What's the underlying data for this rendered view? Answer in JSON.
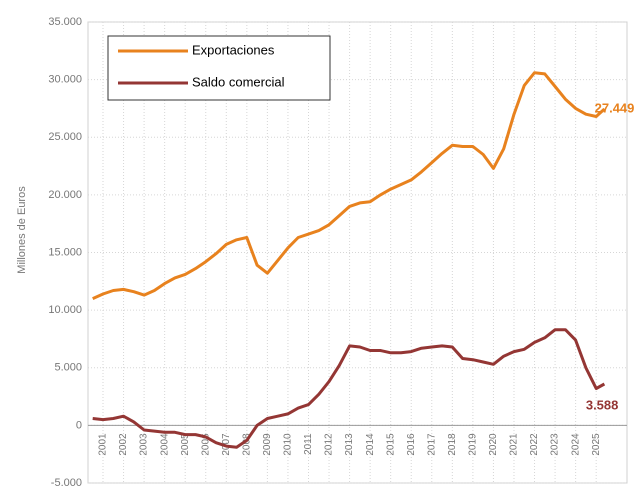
{
  "chart_data": {
    "type": "line",
    "ylabel": "Millones de Euros",
    "x": [
      2001,
      2001.5,
      2002,
      2002.5,
      2003,
      2003.5,
      2004,
      2004.5,
      2005,
      2005.5,
      2006,
      2006.5,
      2007,
      2007.5,
      2008,
      2008.5,
      2009,
      2009.5,
      2010,
      2010.5,
      2011,
      2011.5,
      2012,
      2012.5,
      2013,
      2013.5,
      2014,
      2014.5,
      2015,
      2015.5,
      2016,
      2016.5,
      2017,
      2017.5,
      2018,
      2018.5,
      2019,
      2019.5,
      2020,
      2020.5,
      2021,
      2021.5,
      2022,
      2022.5,
      2023,
      2023.5,
      2024,
      2024.5,
      2025,
      2025.5,
      2025.9
    ],
    "series": [
      {
        "name": "Exportaciones",
        "color": "#e8821e",
        "values": [
          11000,
          11400,
          11700,
          11800,
          11600,
          11300,
          11700,
          12300,
          12800,
          13100,
          13600,
          14200,
          14900,
          15700,
          16100,
          16300,
          13900,
          13200,
          14300,
          15400,
          16300,
          16600,
          16900,
          17400,
          18200,
          19000,
          19300,
          19400,
          20000,
          20500,
          20900,
          21300,
          22000,
          22800,
          23600,
          24300,
          24200,
          24200,
          23500,
          22300,
          24000,
          27000,
          29500,
          30600,
          30500,
          29400,
          28300,
          27500,
          27000,
          26800,
          27449
        ],
        "value_labels": [
          null,
          null,
          null,
          null,
          null,
          null,
          null,
          null,
          null,
          null,
          null,
          null,
          null,
          null,
          null,
          null,
          null,
          null,
          null,
          null,
          null,
          null,
          null,
          null,
          null,
          null,
          null,
          null,
          null,
          null,
          null,
          null,
          null,
          null,
          null,
          null,
          null,
          null,
          null,
          null,
          null,
          null,
          null,
          null,
          null,
          null,
          null,
          null,
          null,
          null,
          "27.449"
        ]
      },
      {
        "name": "Saldo comercial",
        "color": "#943634",
        "values": [
          600,
          500,
          600,
          800,
          300,
          -400,
          -500,
          -600,
          -600,
          -800,
          -800,
          -1000,
          -1500,
          -1800,
          -1900,
          -1300,
          0,
          600,
          800,
          1000,
          1500,
          1800,
          2700,
          3800,
          5200,
          6900,
          6800,
          6500,
          6500,
          6300,
          6300,
          6400,
          6700,
          6800,
          6900,
          6800,
          5800,
          5700,
          5500,
          5300,
          6000,
          6400,
          6600,
          7200,
          7600,
          8300,
          8300,
          7400,
          5000,
          3200,
          3588
        ],
        "value_labels": [
          null,
          null,
          null,
          null,
          null,
          null,
          null,
          null,
          null,
          null,
          null,
          null,
          null,
          null,
          null,
          null,
          null,
          null,
          null,
          null,
          null,
          null,
          null,
          null,
          null,
          null,
          null,
          null,
          null,
          null,
          null,
          null,
          null,
          null,
          null,
          null,
          null,
          null,
          null,
          null,
          null,
          null,
          null,
          null,
          null,
          null,
          null,
          null,
          null,
          null,
          "3.588"
        ]
      }
    ],
    "xlim": [
      2000.77,
      2027.0
    ],
    "xticks": [
      {
        "value": 2001.5,
        "label": "2001"
      },
      {
        "value": 2002.5,
        "label": "2002"
      },
      {
        "value": 2003.5,
        "label": "2003"
      },
      {
        "value": 2004.5,
        "label": "2004"
      },
      {
        "value": 2005.5,
        "label": "2005"
      },
      {
        "value": 2006.5,
        "label": "2006"
      },
      {
        "value": 2007.5,
        "label": "2007"
      },
      {
        "value": 2008.5,
        "label": "2008"
      },
      {
        "value": 2009.5,
        "label": "2009"
      },
      {
        "value": 2010.5,
        "label": "2010"
      },
      {
        "value": 2011.5,
        "label": "2011"
      },
      {
        "value": 2012.5,
        "label": "2012"
      },
      {
        "value": 2013.5,
        "label": "2013"
      },
      {
        "value": 2014.5,
        "label": "2014"
      },
      {
        "value": 2015.5,
        "label": "2015"
      },
      {
        "value": 2016.5,
        "label": "2016"
      },
      {
        "value": 2017.5,
        "label": "2017"
      },
      {
        "value": 2018.5,
        "label": "2018"
      },
      {
        "value": 2019.5,
        "label": "2019"
      },
      {
        "value": 2020.5,
        "label": "2020"
      },
      {
        "value": 2021.5,
        "label": "2021"
      },
      {
        "value": 2022.5,
        "label": "2022"
      },
      {
        "value": 2023.5,
        "label": "2023"
      },
      {
        "value": 2024.5,
        "label": "2024"
      },
      {
        "value": 2025.5,
        "label": "2025"
      }
    ],
    "ylim": [
      -5000,
      35000
    ],
    "yticks": [
      {
        "value": -5000,
        "label": "-5.000"
      },
      0,
      {
        "value": 5000,
        "label": "5.000"
      },
      {
        "value": 10000,
        "label": "10.000"
      },
      {
        "value": 15000,
        "label": "15.000"
      },
      {
        "value": 20000,
        "label": "20.000"
      },
      {
        "value": 25000,
        "label": "25.000"
      },
      {
        "value": 30000,
        "label": "30.000"
      },
      {
        "value": 35000,
        "label": "35.000"
      }
    ],
    "grid": true,
    "legend": "upper left"
  }
}
